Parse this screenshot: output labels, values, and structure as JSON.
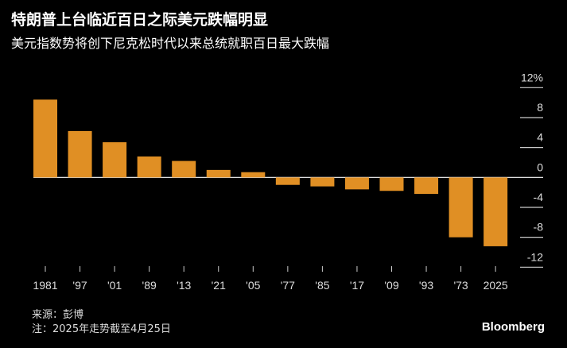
{
  "header": {
    "title": "特朗普上台临近百日之际美元跌幅明显",
    "subtitle": "美元指数势将创下尼克松时代以来总统就职百日最大跌幅"
  },
  "chart_data": {
    "type": "bar",
    "categories": [
      "1981",
      "'97",
      "'01",
      "'89",
      "'13",
      "'21",
      "'05",
      "'77",
      "'85",
      "'17",
      "'09",
      "'93",
      "'73",
      "2025"
    ],
    "values": [
      10.4,
      6.2,
      4.7,
      2.8,
      2.2,
      1.0,
      0.7,
      -1.0,
      -1.2,
      -1.6,
      -1.8,
      -2.2,
      -8.0,
      -9.2
    ],
    "ylim": [
      -12,
      12
    ],
    "yticks": [
      12,
      8,
      4,
      0,
      -4,
      -8,
      -12
    ],
    "ytick_labels": [
      "12%",
      "8",
      "4",
      "0",
      "-4",
      "-8",
      "-12"
    ],
    "bar_color": "#e08f24",
    "grid": false
  },
  "footer": {
    "source": "来源：彭博",
    "note": "注：2025年走势截至4月25日",
    "logo": "Bloomberg"
  }
}
